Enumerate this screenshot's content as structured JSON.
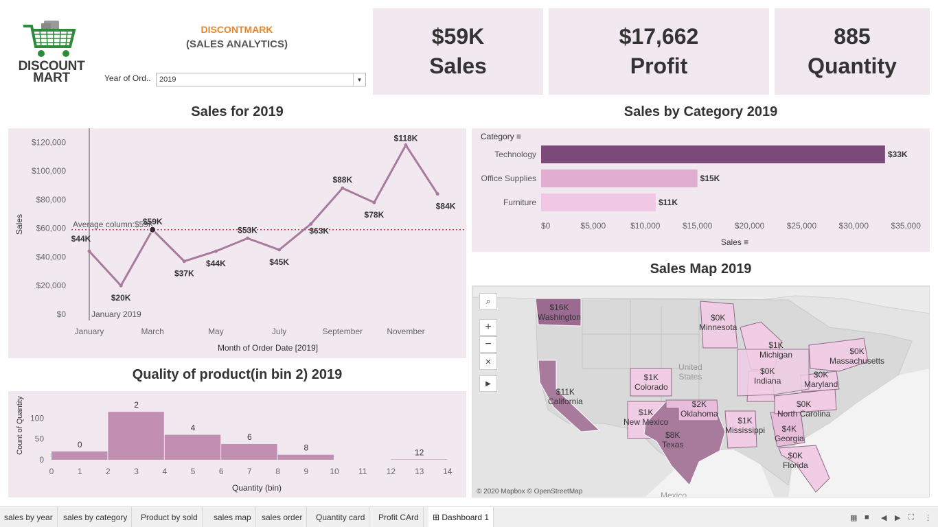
{
  "header": {
    "logo_line1": "DISCOUNT",
    "logo_line2": "MART",
    "brand_title": "DISCONTMARK",
    "brand_subtitle": "(SALES ANALYTICS)",
    "filter_label": "Year of Ord..",
    "filter_value": "2019"
  },
  "kpis": {
    "sales_value": "$59K",
    "sales_label": "Sales",
    "profit_value": "$17,662",
    "profit_label": "Profit",
    "quantity_value": "885",
    "quantity_label": "Quantity"
  },
  "titles": {
    "sales_line": "Sales for 2019",
    "category": "Sales by Category 2019",
    "map": "Sales Map 2019",
    "histogram": "Quality of product(in bin 2) 2019"
  },
  "colors": {
    "accent_orange": "#e8862a",
    "panel_bg": "#f2e8f0",
    "line": "#a87a9c",
    "bar_dark": "#7b4a78",
    "bar_mid": "#e0aed0",
    "bar_light": "#f0c8e4",
    "hist_bar": "#c08fb2",
    "avg_line": "#d04040"
  },
  "chart_data": [
    {
      "type": "line",
      "title": "Sales for 2019",
      "xlabel": "Month of Order Date [2019]",
      "ylabel": "Sales",
      "x": [
        "January",
        "February",
        "March",
        "April",
        "May",
        "June",
        "July",
        "August",
        "September",
        "October",
        "November",
        "December"
      ],
      "x_tick_labels": [
        "January",
        "March",
        "May",
        "July",
        "September",
        "November"
      ],
      "values": [
        44000,
        20000,
        59000,
        37000,
        44000,
        53000,
        45000,
        63000,
        88000,
        78000,
        118000,
        84000
      ],
      "data_labels": [
        "$44K",
        "$20K",
        "$59K",
        "$37K",
        "$44K",
        "$53K",
        "$45K",
        "$63K",
        "$88K",
        "$78K",
        "$118K",
        "$84K"
      ],
      "y_ticks": [
        "$0",
        "$20,000",
        "$40,000",
        "$60,000",
        "$80,000",
        "$100,000",
        "$120,000"
      ],
      "ylim": [
        0,
        124000
      ],
      "reference_line": {
        "label": "Average column:$59K",
        "value": 59000
      },
      "marker_label": "January 2019"
    },
    {
      "type": "bar",
      "orientation": "horizontal",
      "title": "Sales by Category 2019",
      "ylabel": "Category",
      "xlabel": "Sales",
      "categories": [
        "Technology",
        "Office Supplies",
        "Furniture"
      ],
      "values": [
        33000,
        15000,
        11000
      ],
      "data_labels": [
        "$33K",
        "$15K",
        "$11K"
      ],
      "x_ticks": [
        "$0",
        "$5,000",
        "$10,000",
        "$15,000",
        "$20,000",
        "$25,000",
        "$30,000",
        "$35,000"
      ],
      "xlim": [
        0,
        36500
      ]
    },
    {
      "type": "bar",
      "title": "Quality of product(in bin 2) 2019",
      "xlabel": "Quantity (bin)",
      "ylabel": "Count of Quantity",
      "bins": [
        0,
        2,
        4,
        6,
        8,
        10,
        12
      ],
      "values": [
        20,
        115,
        60,
        38,
        12,
        0,
        1
      ],
      "bin_labels": [
        "0",
        "2",
        "4",
        "6",
        "8",
        "",
        "12"
      ],
      "x_ticks": [
        "0",
        "1",
        "2",
        "3",
        "4",
        "5",
        "6",
        "7",
        "8",
        "9",
        "10",
        "11",
        "12",
        "13",
        "14"
      ],
      "y_ticks": [
        "0",
        "50",
        "100"
      ],
      "ylim": [
        0,
        140
      ]
    }
  ],
  "map": {
    "attribution": "© 2020 Mapbox © OpenStreetMap",
    "labels": [
      {
        "value": "$16K",
        "state": "Washington"
      },
      {
        "value": "$0K",
        "state": "Minnesota"
      },
      {
        "value": "$1K",
        "state": "Michigan"
      },
      {
        "value": "$0K",
        "state": "Massachusetts"
      },
      {
        "value": "$0K",
        "state": "Indiana"
      },
      {
        "value": "$0K",
        "state": "Maryland"
      },
      {
        "value": "$1K",
        "state": "Colorado"
      },
      {
        "value": "$11K",
        "state": "California"
      },
      {
        "value": "$2K",
        "state": "Oklahoma"
      },
      {
        "value": "$1K",
        "state": "New Mexico"
      },
      {
        "value": "$0K",
        "state": "North Carolina"
      },
      {
        "value": "$1K",
        "state": "Mississippi"
      },
      {
        "value": "$4K",
        "state": "Georgia"
      },
      {
        "value": "$8K",
        "state": "Texas"
      },
      {
        "value": "$0K",
        "state": "Florida"
      }
    ],
    "country_label_1": "United",
    "country_label_2": "States",
    "mexico_label": "Mexico",
    "controls": [
      "search-icon",
      "zoom-in-icon",
      "zoom-out-icon",
      "pin-icon",
      "play-icon"
    ]
  },
  "tabs": [
    "sales by year",
    "sales by category",
    "Product  by sold",
    "sales map",
    "sales  order",
    "Quantity card",
    "Profit CArd",
    "Dashboard 1"
  ],
  "active_tab": "Dashboard 1"
}
